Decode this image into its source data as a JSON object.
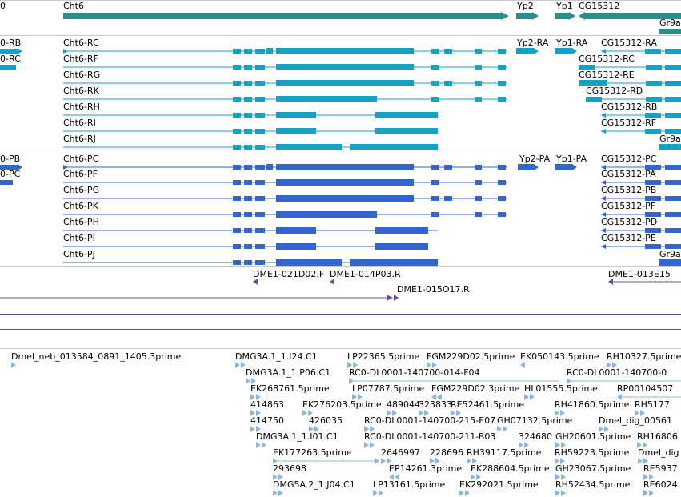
{
  "colors": {
    "gene": "#2a8f8a",
    "transcript_ra": "#17a2c4",
    "transcript_pa": "#3366cc",
    "clone": "#6a4fa0",
    "est": "#8ab8de",
    "divider": "#5a4e8e",
    "grid": "#c9c9c9"
  },
  "gene_track": {
    "labels": [
      {
        "name": "left-gene-label",
        "text": "0"
      },
      {
        "name": "cht6-gene-label",
        "text": "Cht6"
      },
      {
        "name": "yp2-gene-label",
        "text": "Yp2"
      },
      {
        "name": "yp1-gene-label",
        "text": "Yp1"
      },
      {
        "name": "cg15312-gene-label",
        "text": "CG15312"
      },
      {
        "name": "gr9a-gene-label",
        "text": "Gr9a"
      }
    ]
  },
  "rna_track": {
    "labels": [
      {
        "name": "left-rb-label",
        "text": "0-RB"
      },
      {
        "name": "left-rc-label",
        "text": "0-RC"
      },
      {
        "name": "cht6-rc-label",
        "text": "Cht6-RC"
      },
      {
        "name": "cht6-rf-label",
        "text": "Cht6-RF"
      },
      {
        "name": "cht6-rg-label",
        "text": "Cht6-RG"
      },
      {
        "name": "cht6-rk-label",
        "text": "Cht6-RK"
      },
      {
        "name": "cht6-rh-label",
        "text": "Cht6-RH"
      },
      {
        "name": "cht6-ri-label",
        "text": "Cht6-RI"
      },
      {
        "name": "cht6-rj-label",
        "text": "Cht6-RJ"
      },
      {
        "name": "yp2-ra-label",
        "text": "Yp2-RA"
      },
      {
        "name": "yp1-ra-label",
        "text": "Yp1-RA"
      },
      {
        "name": "cg15312-ra-label",
        "text": "CG15312-RA"
      },
      {
        "name": "cg15312-rc-label",
        "text": "CG15312-RC"
      },
      {
        "name": "cg15312-re-label",
        "text": "CG15312-RE"
      },
      {
        "name": "cg15312-rd-label",
        "text": "CG15312-RD"
      },
      {
        "name": "cg15312-rb-label",
        "text": "CG15312-RB"
      },
      {
        "name": "cg15312-rf-label",
        "text": "CG15312-RF"
      },
      {
        "name": "gr9a-r-label",
        "text": "Gr9a"
      }
    ]
  },
  "protein_track": {
    "labels": [
      {
        "name": "left-pb-label",
        "text": "0-PB"
      },
      {
        "name": "left-pc-label",
        "text": "0-PC"
      },
      {
        "name": "cht6-pc-label",
        "text": "Cht6-PC"
      },
      {
        "name": "cht6-pf-label",
        "text": "Cht6-PF"
      },
      {
        "name": "cht6-pg-label",
        "text": "Cht6-PG"
      },
      {
        "name": "cht6-pk-label",
        "text": "Cht6-PK"
      },
      {
        "name": "cht6-ph-label",
        "text": "Cht6-PH"
      },
      {
        "name": "cht6-pi-label",
        "text": "Cht6-PI"
      },
      {
        "name": "cht6-pj-label",
        "text": "Cht6-PJ"
      },
      {
        "name": "yp2-pa-label",
        "text": "Yp2-PA"
      },
      {
        "name": "yp1-pa-label",
        "text": "Yp1-PA"
      },
      {
        "name": "cg15312-pc-label",
        "text": "CG15312-PC"
      },
      {
        "name": "cg15312-pa-label",
        "text": "CG15312-PA"
      },
      {
        "name": "cg15312-pb-label",
        "text": "CG15312-PB"
      },
      {
        "name": "cg15312-pf-label",
        "text": "CG15312-PF"
      },
      {
        "name": "cg15312-pd-label",
        "text": "CG15312-PD"
      },
      {
        "name": "cg15312-pe-label",
        "text": "CG15312-PE"
      },
      {
        "name": "gr9a-p-label",
        "text": "Gr9a"
      }
    ]
  },
  "clone_track": {
    "labels": [
      {
        "name": "clone-021d02-label",
        "text": "DME1-021D02.F"
      },
      {
        "name": "clone-014p03-label",
        "text": "DME1-014P03.R"
      },
      {
        "name": "clone-015o17-label",
        "text": "DME1-015O17.R"
      },
      {
        "name": "clone-013e15-label",
        "text": "DME1-013E15"
      }
    ]
  },
  "est_track": {
    "labels": [
      {
        "name": "est-dmel-neb-label",
        "text": "Dmel_neb_013584_0891_1405.3prime"
      },
      {
        "name": "est-dmg3a-i24-label",
        "text": "DMG3A.1_1.I24.C1"
      },
      {
        "name": "est-lp22365-label",
        "text": "LP22365.5prime"
      },
      {
        "name": "est-fgm229d02-label",
        "text": "FGM229D02.5prime"
      },
      {
        "name": "est-ek050143-label",
        "text": "EK050143.5prime"
      },
      {
        "name": "est-rh10327-label",
        "text": "RH10327.5prime"
      },
      {
        "name": "est-dmg3a-p06-label",
        "text": "DMG3A.1_1.P06.C1"
      },
      {
        "name": "est-rc0-014-f04-label",
        "text": "RC0-DL0001-140700-014-F04"
      },
      {
        "name": "est-rc0-right-label",
        "text": "RC0-DL0001-140700-0"
      },
      {
        "name": "est-ek268761-label",
        "text": "EK268761.5prime"
      },
      {
        "name": "est-lp07787-label",
        "text": "LP07787.5prime"
      },
      {
        "name": "est-fgm229d02-3-label",
        "text": "FGM229D02.3prime"
      },
      {
        "name": "est-hl01555-label",
        "text": "HL01555.5prime"
      },
      {
        "name": "est-rp0010450-label",
        "text": "RP00104507"
      },
      {
        "name": "est-414863-label",
        "text": "414863"
      },
      {
        "name": "est-ek276203-label",
        "text": "EK276203.5prime"
      },
      {
        "name": "est-489044-label",
        "text": "489044"
      },
      {
        "name": "est-323833-label",
        "text": "323833"
      },
      {
        "name": "est-re52461-label",
        "text": "RE52461.5prime"
      },
      {
        "name": "est-rh41860-label",
        "text": "RH41860.5prime"
      },
      {
        "name": "est-rh5177-label",
        "text": "RH5177"
      },
      {
        "name": "est-414750-label",
        "text": "414750"
      },
      {
        "name": "est-426035-label",
        "text": "426035"
      },
      {
        "name": "est-rc0-215-e07-label",
        "text": "RC0-DL0001-140700-215-E07"
      },
      {
        "name": "est-gh07132-label",
        "text": "GH07132.5prime"
      },
      {
        "name": "est-dmel-dig-0056-label",
        "text": "Dmel_dig_00561"
      },
      {
        "name": "est-dmg3a-i01-label",
        "text": "DMG3A.1_1.I01.C1"
      },
      {
        "name": "est-rc0-211-b03-label",
        "text": "RC0-DL0001-140700-211-B03"
      },
      {
        "name": "est-324680-label",
        "text": "324680"
      },
      {
        "name": "est-gh20601-label",
        "text": "GH20601.5prime"
      },
      {
        "name": "est-rh1680-label",
        "text": "RH16806"
      },
      {
        "name": "est-ek177263-label",
        "text": "EK177263.5prime"
      },
      {
        "name": "est-2646997-label",
        "text": "2646997"
      },
      {
        "name": "est-228696-label",
        "text": "228696"
      },
      {
        "name": "est-rh39117-label",
        "text": "RH39117.5prime"
      },
      {
        "name": "est-rh59223-label",
        "text": "RH59223.5prime"
      },
      {
        "name": "est-dmel-dig-right-label",
        "text": "Dmel_dig"
      },
      {
        "name": "est-293698-label",
        "text": "293698"
      },
      {
        "name": "est-ep14261-label",
        "text": "EP14261.3prime"
      },
      {
        "name": "est-ek288604-label",
        "text": "EK288604.5prime"
      },
      {
        "name": "est-gh23067-label",
        "text": "GH23067.5prime"
      },
      {
        "name": "est-re5937-label",
        "text": "RE5937"
      },
      {
        "name": "est-dmg5a-j04-label",
        "text": "DMG5A.2_1.J04.C1"
      },
      {
        "name": "est-lp13161-label",
        "text": "LP13161.5prime"
      },
      {
        "name": "est-ek292021-label",
        "text": "EK292021.5prime"
      },
      {
        "name": "est-rh52434-label",
        "text": "RH52434.5prime"
      },
      {
        "name": "est-re6024-label",
        "text": "RE6024"
      }
    ]
  }
}
